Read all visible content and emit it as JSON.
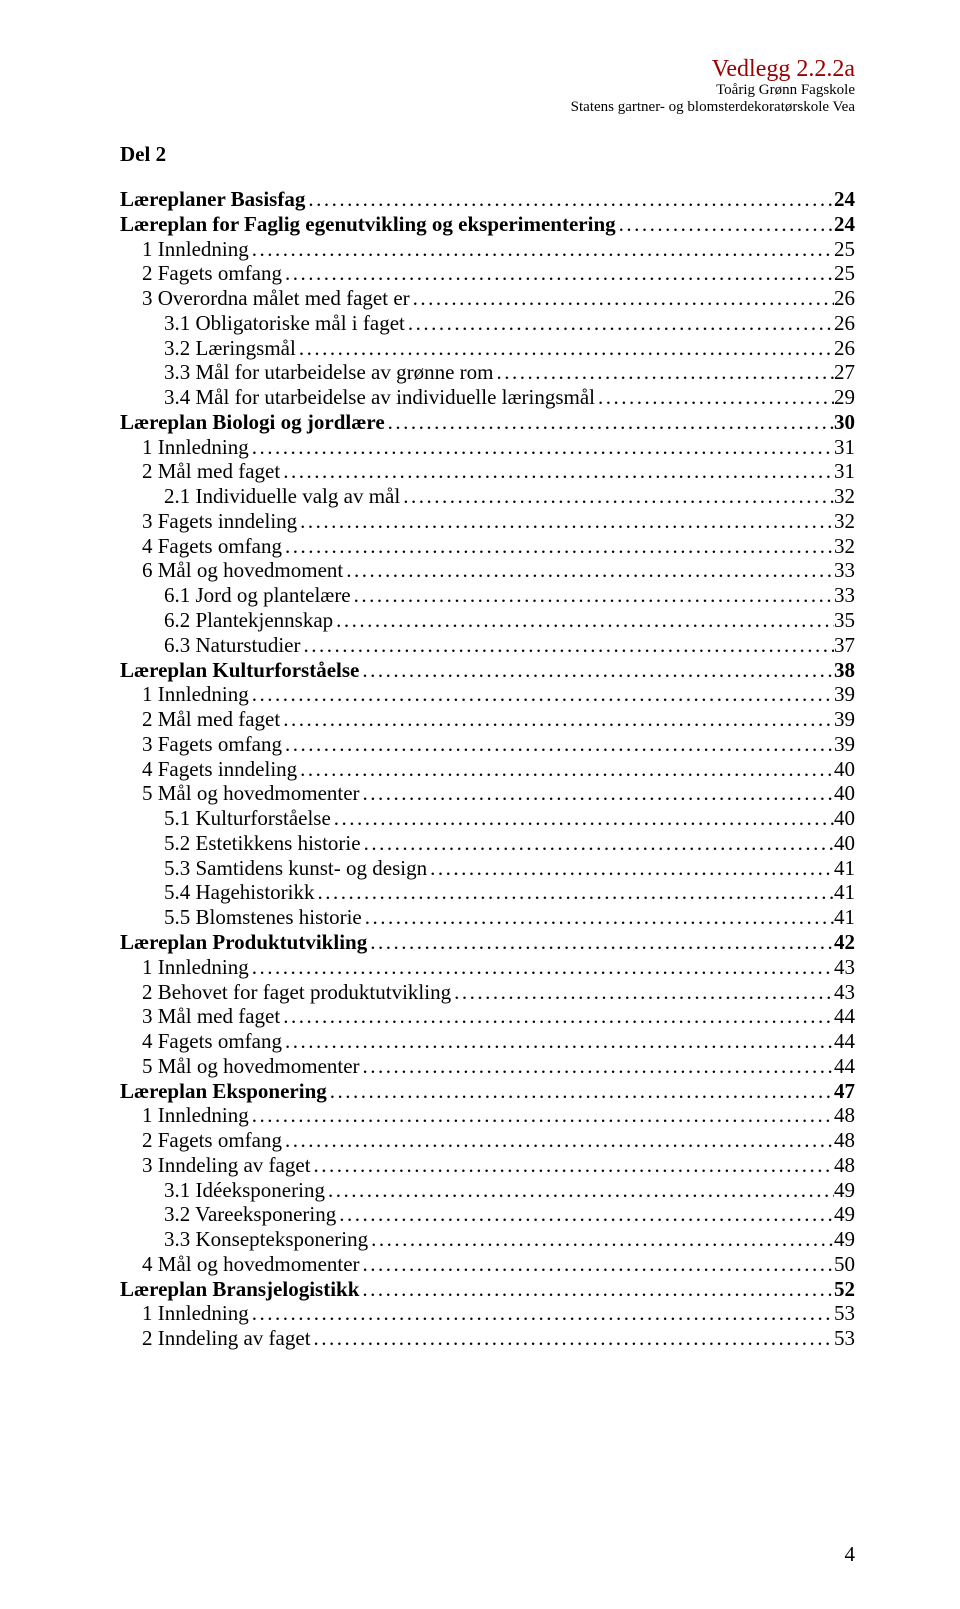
{
  "header": {
    "attachment": "Vedlegg 2.2.2a",
    "sub1": "Toårig Grønn Fagskole",
    "sub2": "Statens gartner- og blomsterdekoratørskole Vea"
  },
  "section_title": "Del 2",
  "page_number": "4",
  "toc": [
    {
      "label": "Læreplaner Basisfag",
      "page": "24",
      "bold": true,
      "indent": 0
    },
    {
      "label": "Læreplan for Faglig egenutvikling og eksperimentering",
      "page": "24",
      "bold": true,
      "indent": 0
    },
    {
      "label": "1 Innledning",
      "page": "25",
      "bold": false,
      "indent": 1
    },
    {
      "label": "2 Fagets omfang",
      "page": "25",
      "bold": false,
      "indent": 1
    },
    {
      "label": "3 Overordna målet med faget er",
      "page": "26",
      "bold": false,
      "indent": 1
    },
    {
      "label": "3.1 Obligatoriske mål i faget",
      "page": "26",
      "bold": false,
      "indent": 2
    },
    {
      "label": "3.2 Læringsmål",
      "page": "26",
      "bold": false,
      "indent": 2
    },
    {
      "label": "3.3 Mål for utarbeidelse av grønne rom",
      "page": "27",
      "bold": false,
      "indent": 2
    },
    {
      "label": "3.4 Mål for utarbeidelse av individuelle læringsmål",
      "page": "29",
      "bold": false,
      "indent": 2
    },
    {
      "label": "Læreplan Biologi og jordlære",
      "page": "30",
      "bold": true,
      "indent": 0
    },
    {
      "label": "1 Innledning",
      "page": "31",
      "bold": false,
      "indent": 1
    },
    {
      "label": "2 Mål med faget",
      "page": "31",
      "bold": false,
      "indent": 1
    },
    {
      "label": "2.1 Individuelle valg av mål",
      "page": "32",
      "bold": false,
      "indent": 2
    },
    {
      "label": "3 Fagets inndeling",
      "page": "32",
      "bold": false,
      "indent": 1
    },
    {
      "label": "4 Fagets omfang",
      "page": "32",
      "bold": false,
      "indent": 1
    },
    {
      "label": "6 Mål og hovedmoment",
      "page": "33",
      "bold": false,
      "indent": 1
    },
    {
      "label": "6.1 Jord og plantelære",
      "page": "33",
      "bold": false,
      "indent": 2
    },
    {
      "label": "6.2 Plantekjennskap",
      "page": "35",
      "bold": false,
      "indent": 2
    },
    {
      "label": "6.3 Naturstudier",
      "page": "37",
      "bold": false,
      "indent": 2
    },
    {
      "label": "Læreplan Kulturforståelse",
      "page": "38",
      "bold": true,
      "indent": 0
    },
    {
      "label": "1 Innledning",
      "page": "39",
      "bold": false,
      "indent": 1
    },
    {
      "label": "2 Mål med faget",
      "page": "39",
      "bold": false,
      "indent": 1
    },
    {
      "label": "3 Fagets omfang",
      "page": "39",
      "bold": false,
      "indent": 1
    },
    {
      "label": "4 Fagets inndeling",
      "page": "40",
      "bold": false,
      "indent": 1
    },
    {
      "label": "5 Mål og hovedmomenter",
      "page": "40",
      "bold": false,
      "indent": 1
    },
    {
      "label": "5.1 Kulturforståelse",
      "page": "40",
      "bold": false,
      "indent": 2
    },
    {
      "label": "5.2 Estetikkens historie",
      "page": "40",
      "bold": false,
      "indent": 2
    },
    {
      "label": "5.3 Samtidens kunst- og design",
      "page": "41",
      "bold": false,
      "indent": 2
    },
    {
      "label": "5.4 Hagehistorikk",
      "page": "41",
      "bold": false,
      "indent": 2
    },
    {
      "label": "5.5 Blomstenes historie",
      "page": "41",
      "bold": false,
      "indent": 2
    },
    {
      "label": "Læreplan Produktutvikling",
      "page": "42",
      "bold": true,
      "indent": 0
    },
    {
      "label": "1 Innledning",
      "page": "43",
      "bold": false,
      "indent": 1
    },
    {
      "label": "2 Behovet for faget produktutvikling",
      "page": "43",
      "bold": false,
      "indent": 1
    },
    {
      "label": "3 Mål med faget",
      "page": "44",
      "bold": false,
      "indent": 1
    },
    {
      "label": "4 Fagets omfang",
      "page": "44",
      "bold": false,
      "indent": 1
    },
    {
      "label": "5 Mål og hovedmomenter",
      "page": "44",
      "bold": false,
      "indent": 1
    },
    {
      "label": "Læreplan Eksponering",
      "page": "47",
      "bold": true,
      "indent": 0
    },
    {
      "label": "1 Innledning",
      "page": "48",
      "bold": false,
      "indent": 1
    },
    {
      "label": "2 Fagets omfang",
      "page": "48",
      "bold": false,
      "indent": 1
    },
    {
      "label": "3 Inndeling av faget",
      "page": "48",
      "bold": false,
      "indent": 1
    },
    {
      "label": "3.1 Idéeksponering",
      "page": "49",
      "bold": false,
      "indent": 2
    },
    {
      "label": "3.2 Vareeksponering",
      "page": "49",
      "bold": false,
      "indent": 2
    },
    {
      "label": "3.3 Konsepteksponering",
      "page": "49",
      "bold": false,
      "indent": 2
    },
    {
      "label": "4 Mål og hovedmomenter",
      "page": "50",
      "bold": false,
      "indent": 1
    },
    {
      "label": "Læreplan Bransjelogistikk",
      "page": "52",
      "bold": true,
      "indent": 0
    },
    {
      "label": "1 Innledning",
      "page": "53",
      "bold": false,
      "indent": 1
    },
    {
      "label": "2 Inndeling av faget",
      "page": "53",
      "bold": false,
      "indent": 1
    }
  ]
}
